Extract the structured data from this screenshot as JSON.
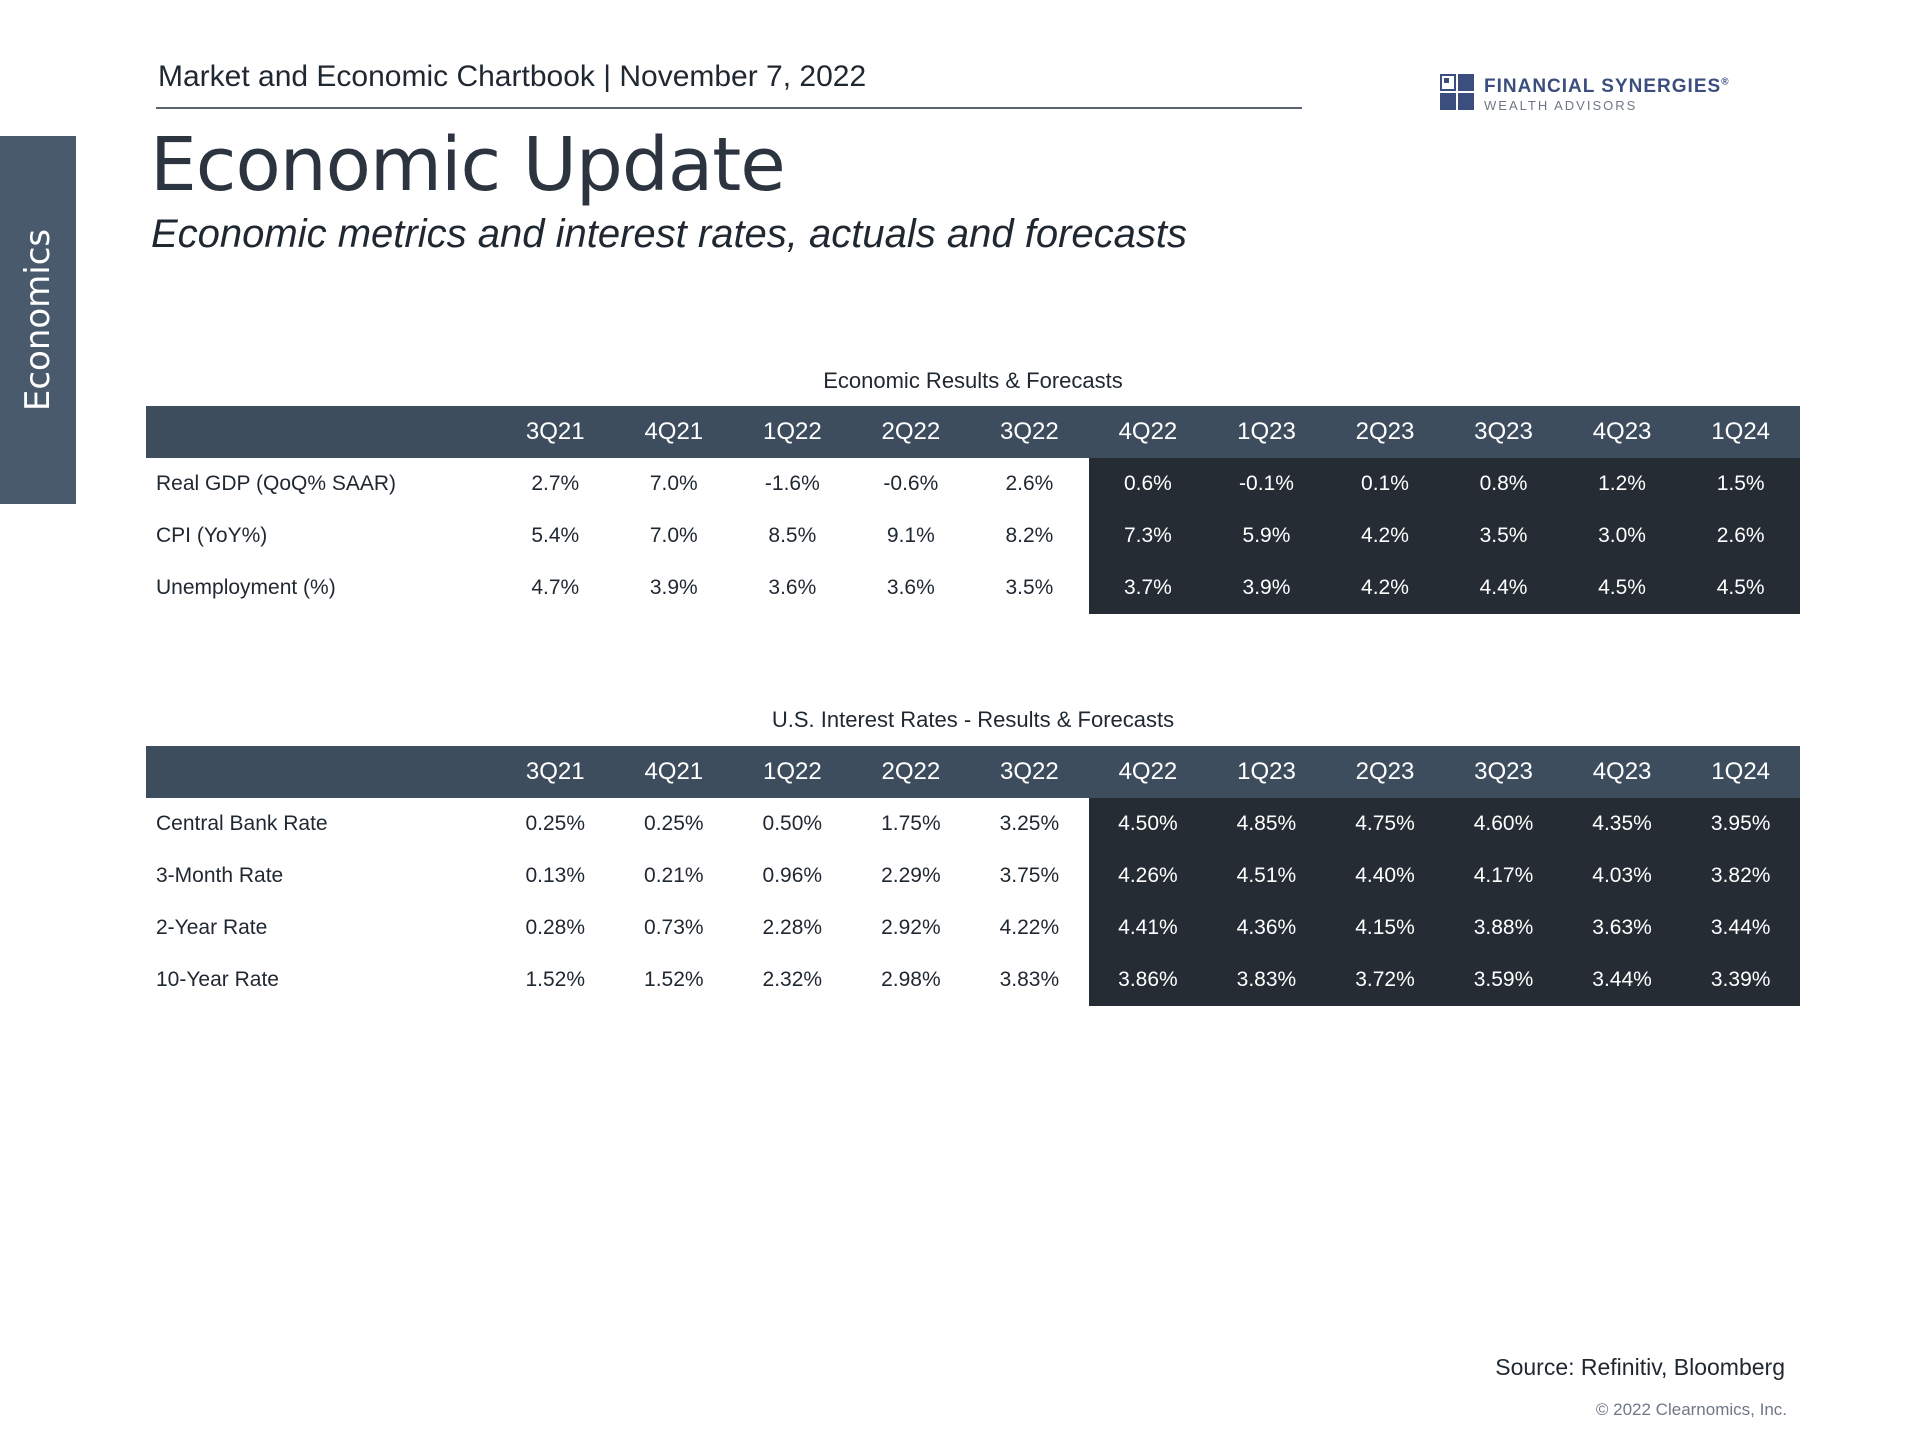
{
  "sidebar": {
    "section_label": "Economics"
  },
  "header": {
    "title": "Market and Economic Chartbook | November 7, 2022"
  },
  "logo": {
    "name": "FINANCIAL SYNERGIES",
    "registered": "®",
    "tagline": "WEALTH ADVISORS"
  },
  "page": {
    "title": "Economic Update",
    "subtitle": "Economic metrics and interest rates, actuals and forecasts"
  },
  "colors": {
    "header_bar": "#3d4d5e",
    "forecast_block": "#252c34",
    "side_tab": "#4a5a6d",
    "brand": "#3b4e7e"
  },
  "economic_table": {
    "caption": "Economic Results & Forecasts",
    "columns": [
      "3Q21",
      "4Q21",
      "1Q22",
      "2Q22",
      "3Q22",
      "4Q22",
      "1Q23",
      "2Q23",
      "3Q23",
      "4Q23",
      "1Q24"
    ],
    "forecast_start_index": 5,
    "rows": [
      {
        "label": "Real GDP (QoQ% SAAR)",
        "values": [
          "2.7%",
          "7.0%",
          "-1.6%",
          "-0.6%",
          "2.6%",
          "0.6%",
          "-0.1%",
          "0.1%",
          "0.8%",
          "1.2%",
          "1.5%"
        ]
      },
      {
        "label": "CPI (YoY%)",
        "values": [
          "5.4%",
          "7.0%",
          "8.5%",
          "9.1%",
          "8.2%",
          "7.3%",
          "5.9%",
          "4.2%",
          "3.5%",
          "3.0%",
          "2.6%"
        ]
      },
      {
        "label": "Unemployment (%)",
        "values": [
          "4.7%",
          "3.9%",
          "3.6%",
          "3.6%",
          "3.5%",
          "3.7%",
          "3.9%",
          "4.2%",
          "4.4%",
          "4.5%",
          "4.5%"
        ]
      }
    ]
  },
  "rates_table": {
    "caption": "U.S. Interest Rates - Results & Forecasts",
    "columns": [
      "3Q21",
      "4Q21",
      "1Q22",
      "2Q22",
      "3Q22",
      "4Q22",
      "1Q23",
      "2Q23",
      "3Q23",
      "4Q23",
      "1Q24"
    ],
    "forecast_start_index": 5,
    "rows": [
      {
        "label": "Central Bank Rate",
        "values": [
          "0.25%",
          "0.25%",
          "0.50%",
          "1.75%",
          "3.25%",
          "4.50%",
          "4.85%",
          "4.75%",
          "4.60%",
          "4.35%",
          "3.95%"
        ]
      },
      {
        "label": "3-Month Rate",
        "values": [
          "0.13%",
          "0.21%",
          "0.96%",
          "2.29%",
          "3.75%",
          "4.26%",
          "4.51%",
          "4.40%",
          "4.17%",
          "4.03%",
          "3.82%"
        ]
      },
      {
        "label": "2-Year Rate",
        "values": [
          "0.28%",
          "0.73%",
          "2.28%",
          "2.92%",
          "4.22%",
          "4.41%",
          "4.36%",
          "4.15%",
          "3.88%",
          "3.63%",
          "3.44%"
        ]
      },
      {
        "label": "10-Year Rate",
        "values": [
          "1.52%",
          "1.52%",
          "2.32%",
          "2.98%",
          "3.83%",
          "3.86%",
          "3.83%",
          "3.72%",
          "3.59%",
          "3.44%",
          "3.39%"
        ]
      }
    ]
  },
  "footer": {
    "source": "Source: Refinitiv, Bloomberg",
    "copyright": "© 2022 Clearnomics, Inc."
  }
}
